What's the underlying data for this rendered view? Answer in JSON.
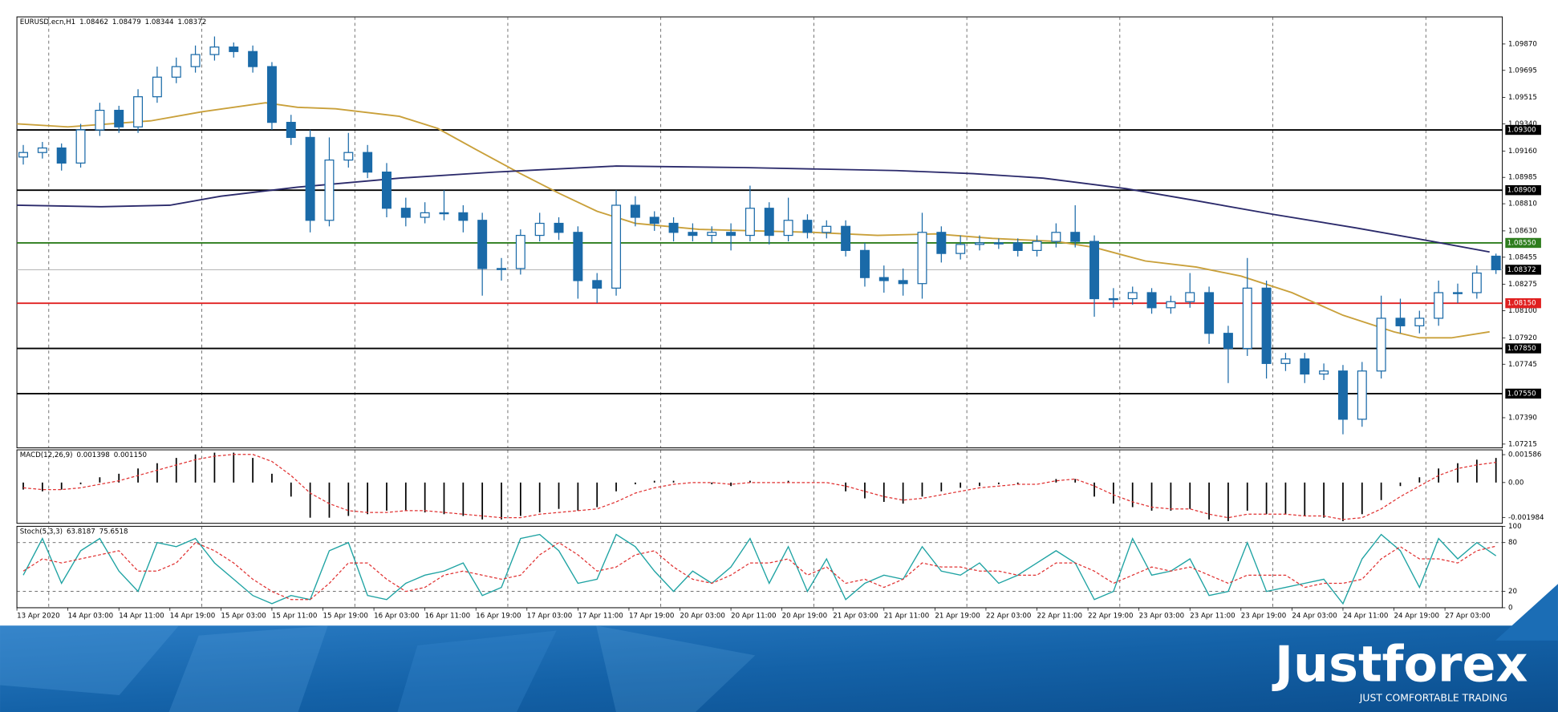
{
  "chart_data": [
    {
      "type": "candlestick",
      "title": "EURUSD.ecn,H1",
      "header_values": [
        1.08462,
        1.08479,
        1.08344,
        1.08372
      ],
      "color": "#1a6aa8",
      "up_fill": "#ffffff",
      "x": [
        1,
        4,
        7,
        10,
        13,
        16,
        19,
        22,
        25,
        28,
        31,
        34,
        37,
        40,
        43,
        46,
        49,
        52,
        55,
        58,
        61,
        64,
        67,
        70,
        73,
        76,
        79,
        82,
        85,
        88,
        91,
        94,
        97,
        100,
        103,
        106,
        109,
        112,
        115,
        118,
        121,
        124,
        127,
        130,
        133,
        136,
        139,
        142,
        145,
        148,
        151,
        154,
        157,
        160,
        163,
        166,
        169,
        172,
        175,
        178,
        181,
        184,
        187,
        190,
        193,
        196,
        199,
        202,
        205,
        208,
        211,
        214,
        217,
        220,
        223,
        226,
        229,
        232
      ],
      "open": [
        1.0912,
        1.0915,
        1.0918,
        1.0908,
        1.093,
        1.0943,
        1.0932,
        1.0952,
        1.0965,
        1.0972,
        1.098,
        1.0985,
        1.0982,
        1.0972,
        1.0935,
        1.0925,
        1.087,
        1.091,
        1.0915,
        1.0902,
        1.0878,
        1.0872,
        1.0875,
        1.0875,
        1.087,
        1.0838,
        1.0838,
        1.086,
        1.0868,
        1.0862,
        1.083,
        1.0825,
        1.088,
        1.0872,
        1.0868,
        1.0862,
        1.086,
        1.0862,
        1.086,
        1.0878,
        1.086,
        1.087,
        1.0862,
        1.0866,
        1.085,
        1.0832,
        1.083,
        1.0828,
        1.0862,
        1.0848,
        1.0854,
        1.0855,
        1.0855,
        1.085,
        1.0856,
        1.0862,
        1.0856,
        1.0818,
        1.0818,
        1.0822,
        1.0812,
        1.0816,
        1.0822,
        1.0795,
        1.0785,
        1.0825,
        1.0775,
        1.0778,
        1.0768,
        1.077,
        1.0738,
        1.077,
        1.0805,
        1.08,
        1.0805,
        1.0822,
        1.0822,
        1.08462
      ],
      "high": [
        1.092,
        1.0922,
        1.0921,
        1.0934,
        1.0948,
        1.0946,
        1.0957,
        1.0972,
        1.0978,
        1.0986,
        1.0992,
        1.0988,
        1.0986,
        1.0975,
        1.094,
        1.093,
        1.0925,
        1.0928,
        1.092,
        1.0908,
        1.0885,
        1.0882,
        1.089,
        1.088,
        1.0875,
        1.0845,
        1.0864,
        1.0875,
        1.0872,
        1.0866,
        1.0835,
        1.089,
        1.0886,
        1.0876,
        1.0872,
        1.0868,
        1.0866,
        1.0868,
        1.0893,
        1.0882,
        1.0885,
        1.0874,
        1.087,
        1.087,
        1.0855,
        1.084,
        1.0838,
        1.0875,
        1.0866,
        1.086,
        1.086,
        1.0858,
        1.0858,
        1.086,
        1.0868,
        1.088,
        1.086,
        1.0825,
        1.0826,
        1.0825,
        1.082,
        1.0835,
        1.0826,
        1.08,
        1.0845,
        1.083,
        1.0782,
        1.0782,
        1.0775,
        1.0774,
        1.0776,
        1.082,
        1.0818,
        1.081,
        1.083,
        1.0828,
        1.084,
        1.08479
      ],
      "low": [
        1.0907,
        1.0911,
        1.0903,
        1.0905,
        1.0926,
        1.0928,
        1.0928,
        1.0948,
        1.0961,
        1.0968,
        1.0976,
        1.0978,
        1.0968,
        1.093,
        1.092,
        1.0862,
        1.0866,
        1.0905,
        1.0898,
        1.0872,
        1.0866,
        1.0868,
        1.087,
        1.0862,
        1.082,
        1.083,
        1.0834,
        1.0856,
        1.0857,
        1.0818,
        1.0815,
        1.082,
        1.0866,
        1.0863,
        1.0856,
        1.0856,
        1.0855,
        1.085,
        1.0856,
        1.0854,
        1.0856,
        1.0858,
        1.0858,
        1.0846,
        1.0826,
        1.0822,
        1.082,
        1.0818,
        1.0842,
        1.0844,
        1.085,
        1.0851,
        1.0846,
        1.0846,
        1.0852,
        1.0852,
        1.0806,
        1.0812,
        1.0814,
        1.0808,
        1.0808,
        1.0812,
        1.0788,
        1.0762,
        1.078,
        1.0765,
        1.077,
        1.0762,
        1.0764,
        1.0728,
        1.0733,
        1.0765,
        1.0795,
        1.0795,
        1.08,
        1.0815,
        1.0818,
        1.08344
      ],
      "close": [
        1.0915,
        1.0918,
        1.0908,
        1.093,
        1.0943,
        1.0932,
        1.0952,
        1.0965,
        1.0972,
        1.098,
        1.0985,
        1.0982,
        1.0972,
        1.0935,
        1.0925,
        1.087,
        1.091,
        1.0915,
        1.0902,
        1.0878,
        1.0872,
        1.0875,
        1.0875,
        1.087,
        1.0838,
        1.0838,
        1.086,
        1.0868,
        1.0862,
        1.083,
        1.0825,
        1.088,
        1.0872,
        1.0868,
        1.0862,
        1.086,
        1.0862,
        1.086,
        1.0878,
        1.086,
        1.087,
        1.0862,
        1.0866,
        1.085,
        1.0832,
        1.083,
        1.0828,
        1.0862,
        1.0848,
        1.0854,
        1.0855,
        1.0855,
        1.085,
        1.0856,
        1.0862,
        1.0856,
        1.0818,
        1.0818,
        1.0822,
        1.0812,
        1.0816,
        1.0822,
        1.0795,
        1.0785,
        1.0825,
        1.0775,
        1.0778,
        1.0768,
        1.077,
        1.0738,
        1.077,
        1.0805,
        1.08,
        1.0805,
        1.0822,
        1.0822,
        1.0835,
        1.08372
      ],
      "overlays": [
        {
          "color": "#c9a03a",
          "x": [
            0,
            8,
            21,
            29,
            39,
            44,
            50,
            60,
            66,
            72,
            79,
            85,
            91,
            97,
            107,
            116,
            125,
            135,
            144,
            153,
            163,
            169,
            177,
            185,
            192,
            200,
            208,
            216,
            220,
            225,
            231
          ],
          "values": [
            1.0934,
            1.0932,
            1.0936,
            1.0942,
            1.0948,
            1.0945,
            1.0944,
            1.0939,
            1.0931,
            1.0917,
            1.0901,
            1.0888,
            1.0876,
            1.0868,
            1.0864,
            1.0863,
            1.0862,
            1.086,
            1.0861,
            1.0858,
            1.0856,
            1.0852,
            1.0843,
            1.0839,
            1.0833,
            1.0822,
            1.0807,
            1.0796,
            1.0792,
            1.0792,
            1.0796
          ]
        },
        {
          "color": "#2b2a6b",
          "x": [
            0,
            13,
            24,
            32,
            44,
            60,
            75,
            94,
            114,
            138,
            150,
            161,
            174,
            185,
            197,
            210,
            222,
            231
          ],
          "values": [
            1.088,
            1.0879,
            1.088,
            1.0886,
            1.0892,
            1.0898,
            1.0902,
            1.0906,
            1.0905,
            1.0903,
            1.0901,
            1.0898,
            1.0891,
            1.0883,
            1.0874,
            1.0865,
            1.0856,
            1.0849
          ]
        }
      ],
      "levels": [
        {
          "value": 1.093,
          "label": "1.09300",
          "color": "#000000"
        },
        {
          "value": 1.089,
          "label": "1.08900",
          "color": "#000000"
        },
        {
          "value": 1.0855,
          "label": "1.08550",
          "color": "#2e7d1e"
        },
        {
          "value": 1.0815,
          "label": "1.08150",
          "color": "#e02020"
        },
        {
          "value": 1.0785,
          "label": "1.07850",
          "color": "#000000"
        },
        {
          "value": 1.0755,
          "label": "1.07550",
          "color": "#000000"
        }
      ],
      "current_price": 1.08372,
      "current_color": "#b0b0b0",
      "ylim": [
        1.0719,
        1.1005
      ],
      "yticks": [
        {
          "value": 1.0987,
          "label": "1.09870"
        },
        1.09695,
        1.09515,
        {
          "value": 1.0934,
          "label": "1.09340"
        },
        {
          "value": 1.0916,
          "label": "1.09160"
        },
        1.08985,
        {
          "value": 1.0881,
          "label": "1.08810"
        },
        {
          "value": 1.0863,
          "label": "1.08630"
        },
        1.08455,
        1.08275,
        {
          "value": 1.081,
          "label": "1.08100"
        },
        {
          "value": 1.0792,
          "label": "1.07920"
        },
        1.07745,
        {
          "value": 1.0739,
          "label": "1.07390"
        },
        1.07215
      ],
      "xlim": [
        0,
        233
      ],
      "xticks": [
        {
          "value": 0,
          "label": "13 Apr 2020"
        },
        {
          "value": 8,
          "label": "14 Apr 03:00"
        },
        {
          "value": 16,
          "label": "14 Apr 11:00"
        },
        {
          "value": 24,
          "label": "14 Apr 19:00"
        },
        {
          "value": 32,
          "label": "15 Apr 03:00"
        },
        {
          "value": 40,
          "label": "15 Apr 11:00"
        },
        {
          "value": 48,
          "label": "15 Apr 19:00"
        },
        {
          "value": 56,
          "label": "16 Apr 03:00"
        },
        {
          "value": 64,
          "label": "16 Apr 11:00"
        },
        {
          "value": 72,
          "label": "16 Apr 19:00"
        },
        {
          "value": 80,
          "label": "17 Apr 03:00"
        },
        {
          "value": 88,
          "label": "17 Apr 11:00"
        },
        {
          "value": 96,
          "label": "17 Apr 19:00"
        },
        {
          "value": 104,
          "label": "20 Apr 03:00"
        },
        {
          "value": 112,
          "label": "20 Apr 11:00"
        },
        {
          "value": 120,
          "label": "20 Apr 19:00"
        },
        {
          "value": 128,
          "label": "21 Apr 03:00"
        },
        {
          "value": 136,
          "label": "21 Apr 11:00"
        },
        {
          "value": 144,
          "label": "21 Apr 19:00"
        },
        {
          "value": 152,
          "label": "22 Apr 03:00"
        },
        {
          "value": 160,
          "label": "22 Apr 11:00"
        },
        {
          "value": 168,
          "label": "22 Apr 19:00"
        },
        {
          "value": 176,
          "label": "23 Apr 03:00"
        },
        {
          "value": 184,
          "label": "23 Apr 11:00"
        },
        {
          "value": 192,
          "label": "23 Apr 19:00"
        },
        {
          "value": 200,
          "label": "24 Apr 03:00"
        },
        {
          "value": 208,
          "label": "24 Apr 11:00"
        },
        {
          "value": 216,
          "label": "24 Apr 19:00"
        },
        {
          "value": 224,
          "label": "27 Apr 03:00"
        }
      ],
      "x_gridlines": [
        5,
        29,
        53,
        77,
        101,
        125,
        149,
        173,
        197,
        221
      ]
    },
    {
      "type": "macd",
      "title": "MACD(12,26,9)",
      "header_values": [
        0.001398,
        {
          "value": 0.00115,
          "label": "0.001150"
        }
      ],
      "color": "#000000",
      "values": [
        -0.0004,
        -0.0005,
        -0.0004,
        -0.0001,
        0.0003,
        0.0005,
        0.0008,
        0.0011,
        0.0014,
        0.0016,
        0.0017,
        0.0017,
        0.0014,
        0.0005,
        -0.0008,
        -0.002,
        -0.002,
        -0.0019,
        -0.0018,
        -0.0016,
        -0.0016,
        -0.0017,
        -0.0018,
        -0.0019,
        -0.0021,
        -0.0021,
        -0.0019,
        -0.0017,
        -0.0015,
        -0.0016,
        -0.0014,
        -0.0005,
        -0.0001,
        0.0001,
        0.0001,
        0,
        -0.0001,
        -0.0002,
        0.0001,
        0,
        0.0001,
        0,
        0,
        -0.0005,
        -0.0009,
        -0.0011,
        -0.0012,
        -0.0008,
        -0.0005,
        -0.0003,
        -0.0002,
        -0.0001,
        -0.0001,
        0,
        0.0002,
        0.0002,
        -0.0008,
        -0.0012,
        -0.0014,
        -0.0016,
        -0.0016,
        -0.0015,
        -0.0021,
        -0.0022,
        -0.0016,
        -0.0018,
        -0.0018,
        -0.0019,
        -0.002,
        -0.0022,
        -0.0018,
        -0.001,
        -0.0002,
        0.0003,
        0.0008,
        0.0011,
        0.0013,
        0.001398
      ],
      "signal": {
        "color": "#e03030",
        "values": [
          -0.0003,
          -0.0004,
          -0.0004,
          -0.0003,
          -0.0001,
          0.0001,
          0.0004,
          0.0007,
          0.001,
          0.0013,
          0.0015,
          0.0016,
          0.0016,
          0.0012,
          0.0004,
          -0.0006,
          -0.0012,
          -0.0016,
          -0.0017,
          -0.0017,
          -0.0016,
          -0.0016,
          -0.0017,
          -0.0018,
          -0.0019,
          -0.002,
          -0.002,
          -0.0018,
          -0.0017,
          -0.0016,
          -0.0015,
          -0.0011,
          -0.0006,
          -0.0003,
          -0.0001,
          0,
          0,
          -0.0001,
          0,
          0,
          0,
          0,
          0,
          -0.0002,
          -0.0005,
          -0.0008,
          -0.001,
          -0.0009,
          -0.0007,
          -0.0005,
          -0.0003,
          -0.0002,
          -0.0001,
          -0.0001,
          0.0001,
          0.0002,
          -0.0002,
          -0.0007,
          -0.0011,
          -0.0014,
          -0.0015,
          -0.0015,
          -0.0018,
          -0.002,
          -0.0018,
          -0.0018,
          -0.0018,
          -0.0019,
          -0.0019,
          -0.0021,
          -0.002,
          -0.0015,
          -0.0008,
          -0.0002,
          0.0004,
          0.0008,
          0.001,
          0.00115
        ]
      },
      "ylim": [
        -0.00232,
        0.00186
      ],
      "yticks": [
        0.001586,
        {
          "value": 0,
          "label": "0.00"
        },
        -0.001984
      ]
    },
    {
      "type": "stochastic",
      "title": "Stoch(5,3,3)",
      "header_values": [
        63.8187,
        75.6518
      ],
      "series": [
        {
          "color": "#1fa3a3",
          "values": [
            40,
            85,
            30,
            70,
            85,
            45,
            20,
            80,
            75,
            85,
            55,
            35,
            15,
            5,
            15,
            10,
            70,
            80,
            15,
            10,
            30,
            40,
            45,
            55,
            15,
            25,
            85,
            90,
            70,
            30,
            35,
            90,
            75,
            45,
            20,
            45,
            30,
            50,
            85,
            30,
            75,
            20,
            60,
            10,
            30,
            40,
            35,
            75,
            45,
            40,
            55,
            30,
            40,
            55,
            70,
            55,
            10,
            20,
            85,
            40,
            45,
            60,
            15,
            20,
            80,
            20,
            25,
            30,
            35,
            5,
            60,
            90,
            70,
            25,
            85,
            60,
            80,
            63.8187
          ]
        },
        {
          "color": "#e03030",
          "dashed": true,
          "values": [
            45,
            60,
            55,
            60,
            65,
            70,
            45,
            45,
            55,
            80,
            70,
            55,
            35,
            20,
            10,
            10,
            30,
            55,
            55,
            35,
            20,
            25,
            40,
            45,
            40,
            35,
            40,
            65,
            80,
            65,
            45,
            50,
            65,
            70,
            50,
            35,
            30,
            40,
            55,
            55,
            60,
            40,
            50,
            30,
            35,
            25,
            35,
            55,
            50,
            50,
            45,
            45,
            40,
            40,
            55,
            55,
            45,
            30,
            40,
            50,
            45,
            50,
            40,
            30,
            40,
            40,
            40,
            25,
            30,
            30,
            35,
            60,
            75,
            60,
            60,
            55,
            70,
            75.6518
          ]
        }
      ],
      "ylim": [
        0,
        100
      ],
      "yticks": [
        0,
        20,
        80,
        100
      ],
      "levels": [
        20,
        80
      ]
    }
  ],
  "brand": {
    "logo": "Justforex",
    "tagline": "JUST COMFORTABLE TRADING"
  }
}
